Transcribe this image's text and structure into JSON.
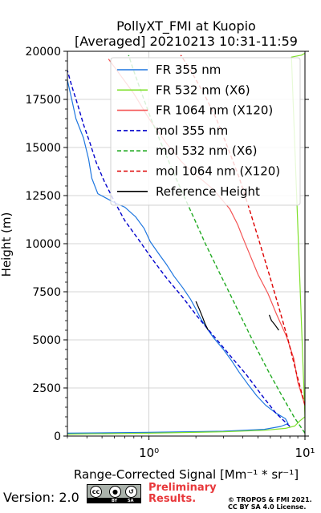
{
  "chart_data": {
    "type": "line",
    "title": "PollyXT_FMI at Kuopio",
    "subtitle": "[Averaged] 20210213 10:31-11:59",
    "xlabel": "Range-Corrected Signal [Mm⁻¹ * sr⁻¹]",
    "ylabel": "Height (m)",
    "xscale": "log",
    "xlim": [
      0.3,
      10
    ],
    "ylim": [
      0,
      20000
    ],
    "xticks": [
      1,
      10
    ],
    "xtick_labels": [
      "10⁰",
      "10¹"
    ],
    "yticks": [
      0,
      2500,
      5000,
      7500,
      10000,
      12500,
      15000,
      17500,
      20000
    ],
    "ytick_labels": [
      "0",
      "2500",
      "5000",
      "7500",
      "10000",
      "12500",
      "15000",
      "17500",
      "20000"
    ],
    "grid": true,
    "legend_position": "top-right",
    "series": [
      {
        "name": "FR 355 nm",
        "color": "#1f77e0",
        "style": "solid",
        "points": [
          [
            0.3,
            150
          ],
          [
            1.0,
            190
          ],
          [
            3.0,
            250
          ],
          [
            5.5,
            350
          ],
          [
            7.0,
            500
          ],
          [
            7.8,
            650
          ],
          [
            7.5,
            900
          ],
          [
            6.5,
            1200
          ],
          [
            5.6,
            1600
          ],
          [
            4.9,
            2100
          ],
          [
            4.3,
            2700
          ],
          [
            3.8,
            3300
          ],
          [
            3.4,
            3900
          ],
          [
            3.0,
            4500
          ],
          [
            2.6,
            5100
          ],
          [
            2.35,
            5600
          ],
          [
            2.15,
            6100
          ],
          [
            2.0,
            6600
          ],
          [
            1.85,
            7100
          ],
          [
            1.65,
            7700
          ],
          [
            1.45,
            8300
          ],
          [
            1.3,
            8900
          ],
          [
            1.15,
            9500
          ],
          [
            1.02,
            10100
          ],
          [
            0.93,
            10800
          ],
          [
            0.82,
            11400
          ],
          [
            0.7,
            11900
          ],
          [
            0.58,
            12200
          ],
          [
            0.47,
            12600
          ],
          [
            0.43,
            13400
          ],
          [
            0.41,
            14400
          ],
          [
            0.38,
            15500
          ],
          [
            0.34,
            16500
          ],
          [
            0.32,
            17500
          ],
          [
            0.3,
            18500
          ]
        ]
      },
      {
        "name": "FR 532 nm (X6)",
        "color": "#7ee02a",
        "style": "solid",
        "points": [
          [
            0.3,
            100
          ],
          [
            1.0,
            150
          ],
          [
            3.0,
            220
          ],
          [
            5.5,
            300
          ],
          [
            7.5,
            400
          ],
          [
            8.6,
            520
          ],
          [
            9.3,
            800
          ],
          [
            10.0,
            1000
          ],
          [
            8.2,
            19700
          ],
          [
            9.5,
            19800
          ],
          [
            10.0,
            19900
          ]
        ]
      },
      {
        "name": "FR 1064 nm (X120)",
        "color": "#f45454",
        "style": "solid",
        "points": [
          [
            10.0,
            1600
          ],
          [
            9.0,
            2800
          ],
          [
            8.5,
            4000
          ],
          [
            7.6,
            5200
          ],
          [
            6.6,
            6300
          ],
          [
            5.8,
            7400
          ],
          [
            5.0,
            8400
          ],
          [
            4.5,
            9300
          ],
          [
            4.0,
            10300
          ],
          [
            3.7,
            11000
          ],
          [
            3.3,
            11800
          ],
          [
            3.0,
            12200
          ],
          [
            2.6,
            12800
          ],
          [
            2.2,
            13300
          ],
          [
            1.9,
            13700
          ],
          [
            1.6,
            14300
          ],
          [
            1.3,
            15200
          ],
          [
            1.0,
            16500
          ],
          [
            0.8,
            17800
          ],
          [
            0.65,
            18800
          ],
          [
            0.55,
            19600
          ]
        ]
      },
      {
        "name": "mol 355 nm",
        "color": "#0000cc",
        "style": "dashed",
        "points": [
          [
            8.0,
            500
          ],
          [
            6.5,
            1200
          ],
          [
            5.2,
            2200
          ],
          [
            4.2,
            3200
          ],
          [
            3.3,
            4200
          ],
          [
            2.6,
            5200
          ],
          [
            2.05,
            6200
          ],
          [
            1.65,
            7200
          ],
          [
            1.3,
            8200
          ],
          [
            1.05,
            9200
          ],
          [
            0.86,
            10200
          ],
          [
            0.7,
            11200
          ],
          [
            0.6,
            12200
          ],
          [
            0.52,
            13200
          ],
          [
            0.46,
            14200
          ],
          [
            0.42,
            15200
          ],
          [
            0.38,
            16200
          ],
          [
            0.35,
            17200
          ],
          [
            0.32,
            18200
          ],
          [
            0.3,
            19000
          ]
        ]
      },
      {
        "name": "mol 532 nm (X6)",
        "color": "#22aa22",
        "style": "dashed",
        "points": [
          [
            10.0,
            150
          ],
          [
            8.5,
            1000
          ],
          [
            7.0,
            2200
          ],
          [
            5.8,
            3400
          ],
          [
            4.8,
            4700
          ],
          [
            4.0,
            6000
          ],
          [
            3.3,
            7400
          ],
          [
            2.75,
            8700
          ],
          [
            2.3,
            10000
          ],
          [
            1.95,
            11300
          ],
          [
            1.65,
            12600
          ],
          [
            1.4,
            13900
          ],
          [
            1.2,
            15200
          ],
          [
            1.03,
            16500
          ],
          [
            0.9,
            17800
          ],
          [
            0.79,
            19100
          ],
          [
            0.74,
            19800
          ]
        ]
      },
      {
        "name": "mol 1064 nm (X120)",
        "color": "#dd0000",
        "style": "dashed",
        "points": [
          [
            10.0,
            1600
          ],
          [
            8.8,
            3300
          ],
          [
            7.8,
            5000
          ],
          [
            6.8,
            6700
          ],
          [
            5.9,
            8400
          ],
          [
            5.1,
            10100
          ],
          [
            4.4,
            11800
          ],
          [
            3.8,
            13400
          ],
          [
            3.2,
            15000
          ],
          [
            2.7,
            16500
          ],
          [
            2.25,
            17800
          ],
          [
            1.85,
            19000
          ],
          [
            1.6,
            19800
          ]
        ]
      },
      {
        "name": "Reference Height",
        "color": "#000000",
        "style": "solid",
        "points": [
          [
            2.0,
            7000
          ],
          [
            2.1,
            6600
          ],
          [
            2.2,
            6200
          ],
          [
            2.3,
            5800
          ],
          [
            2.4,
            5500
          ]
        ]
      },
      {
        "name": "",
        "color": "#000000",
        "style": "solid",
        "points": [
          [
            5.9,
            6300
          ],
          [
            6.1,
            6000
          ],
          [
            6.4,
            5800
          ],
          [
            6.8,
            5500
          ]
        ]
      }
    ]
  },
  "footer": {
    "version": "Version: 2.0",
    "badge_labels": [
      "BY",
      "SA"
    ],
    "badge_icons": [
      "cc-icon",
      "by-icon",
      "sa-icon"
    ],
    "preliminary_line1": "Preliminary",
    "preliminary_line2": "Results.",
    "copyright_line1": "© TROPOS & FMI 2021.",
    "copyright_line2": "CC BY SA 4.0 License."
  }
}
